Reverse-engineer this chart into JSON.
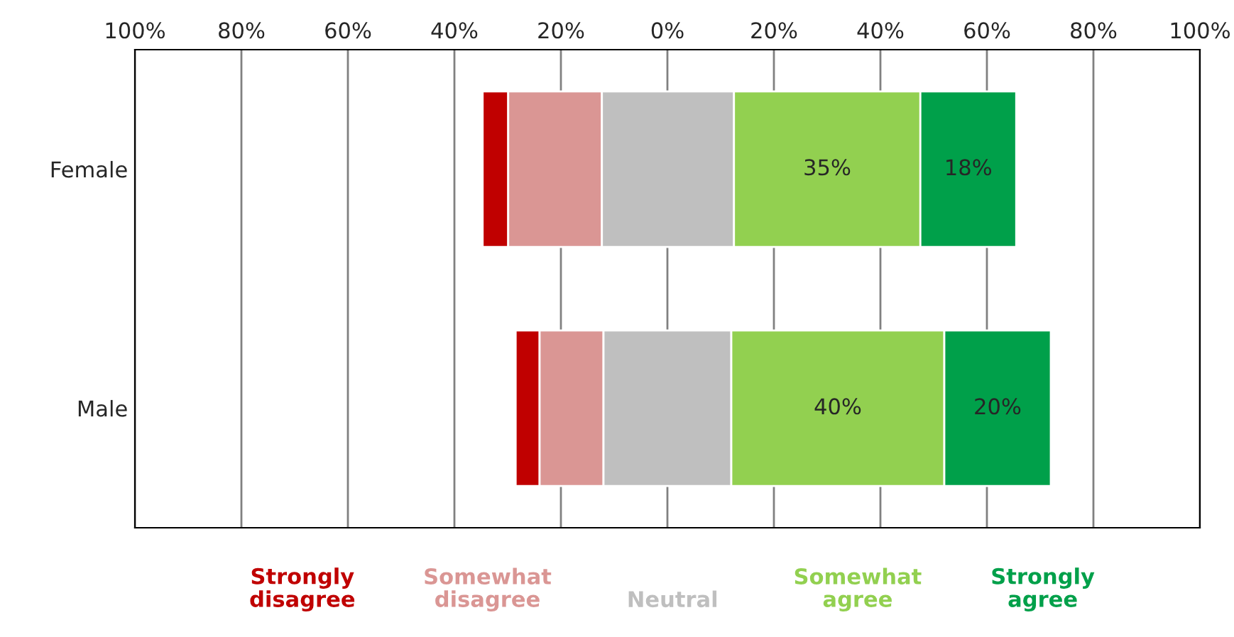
{
  "chart_data": {
    "type": "bar",
    "orientation": "horizontal",
    "categories": [
      "Female",
      "Male"
    ],
    "series": [
      {
        "name": "Strongly\ndisagree",
        "color": "#c00000",
        "base": [
          -34.7,
          -28.5
        ],
        "values": [
          4.8,
          4.5
        ]
      },
      {
        "name": "Somewhat\ndisagree",
        "color": "#da9694",
        "base": [
          -29.9,
          -24.0
        ],
        "values": [
          17.6,
          12.0
        ]
      },
      {
        "name": "Neutral",
        "color": "#bfbfbf",
        "base": [
          -12.3,
          -12.0
        ],
        "values": [
          24.8,
          24.0
        ]
      },
      {
        "name": "Somewhat\nagree",
        "color": "#92d050",
        "base": [
          12.5,
          12.0
        ],
        "values": [
          35,
          40
        ],
        "value_labels": [
          "35%",
          "40%"
        ]
      },
      {
        "name": "Strongly\nagree",
        "color": "#00a04a",
        "base": [
          47.5,
          52.0
        ],
        "values": [
          18,
          20
        ],
        "value_labels": [
          "18%",
          "20%"
        ]
      }
    ],
    "xlim": [
      -100,
      100
    ],
    "xticks": [
      {
        "value": -100,
        "label": "100%"
      },
      {
        "value": -80,
        "label": "80%"
      },
      {
        "value": -60,
        "label": "60%"
      },
      {
        "value": -40,
        "label": "40%"
      },
      {
        "value": -20,
        "label": "20%"
      },
      {
        "value": 0,
        "label": "0%"
      },
      {
        "value": 20,
        "label": "20%"
      },
      {
        "value": 40,
        "label": "40%"
      },
      {
        "value": 60,
        "label": "60%"
      },
      {
        "value": 80,
        "label": "80%"
      },
      {
        "value": 100,
        "label": "100%"
      }
    ],
    "grid": "x",
    "legend": "bottom"
  }
}
